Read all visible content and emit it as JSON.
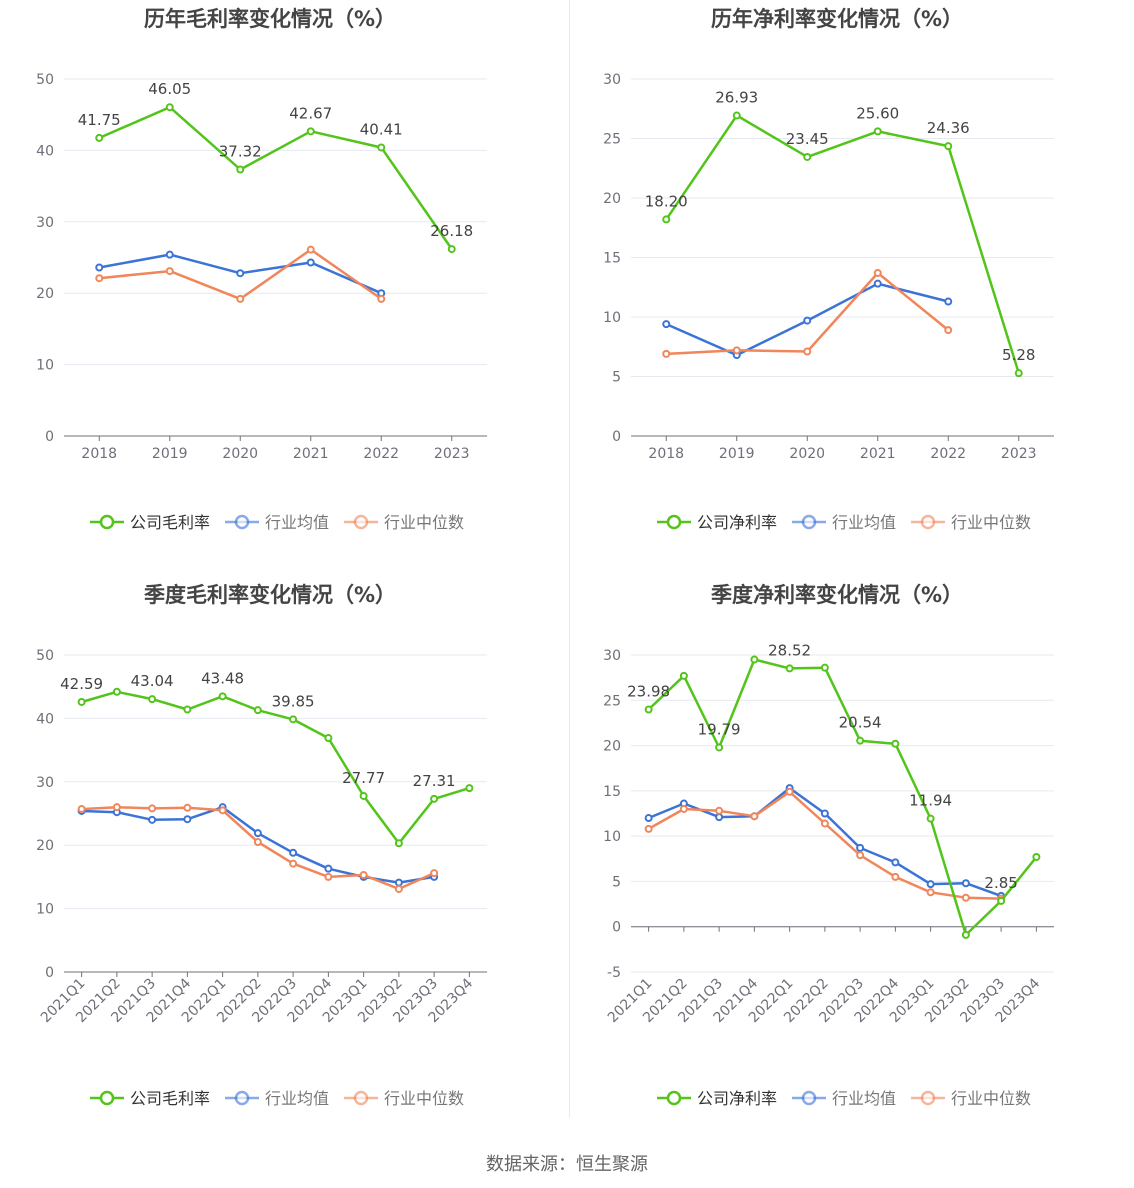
{
  "source_text": "数据来源：恒生聚源",
  "colors": {
    "company": "#52c41a",
    "avg": "#3b73d6",
    "median": "#f0865a",
    "grid": "#e6e9f0",
    "axis": "#6e7079",
    "title": "#444444"
  },
  "chart_data": [
    {
      "id": "annual-gross",
      "type": "line",
      "title": "历年毛利率变化情况（%）",
      "categories": [
        "2018",
        "2019",
        "2020",
        "2021",
        "2022",
        "2023"
      ],
      "ylim": [
        0,
        50
      ],
      "yticks": [
        0,
        10,
        20,
        30,
        40,
        50
      ],
      "rotate_x": false,
      "legend_position": "bottom",
      "series": [
        {
          "name": "公司毛利率",
          "key": "company",
          "values": [
            41.75,
            46.05,
            37.32,
            42.67,
            40.41,
            26.18
          ],
          "labels": [
            "41.75",
            "46.05",
            "37.32",
            "42.67",
            "40.41",
            "26.18"
          ]
        },
        {
          "name": "行业均值",
          "key": "avg",
          "values": [
            23.6,
            25.4,
            22.8,
            24.3,
            20.0,
            null
          ]
        },
        {
          "name": "行业中位数",
          "key": "median",
          "values": [
            22.1,
            23.1,
            19.2,
            26.1,
            19.2,
            null
          ]
        }
      ]
    },
    {
      "id": "annual-net",
      "type": "line",
      "title": "历年净利率变化情况（%）",
      "categories": [
        "2018",
        "2019",
        "2020",
        "2021",
        "2022",
        "2023"
      ],
      "ylim": [
        0,
        30
      ],
      "yticks": [
        0,
        5,
        10,
        15,
        20,
        25,
        30
      ],
      "rotate_x": false,
      "legend_position": "bottom",
      "series": [
        {
          "name": "公司净利率",
          "key": "company",
          "values": [
            18.2,
            26.93,
            23.45,
            25.6,
            24.36,
            5.28
          ],
          "labels": [
            "18.20",
            "26.93",
            "23.45",
            "25.60",
            "24.36",
            "5.28"
          ]
        },
        {
          "name": "行业均值",
          "key": "avg",
          "values": [
            9.4,
            6.8,
            9.7,
            12.8,
            11.3,
            null
          ]
        },
        {
          "name": "行业中位数",
          "key": "median",
          "values": [
            6.9,
            7.2,
            7.1,
            13.7,
            8.9,
            null
          ]
        }
      ]
    },
    {
      "id": "quarterly-gross",
      "type": "line",
      "title": "季度毛利率变化情况（%）",
      "categories": [
        "2021Q1",
        "2021Q2",
        "2021Q3",
        "2021Q4",
        "2022Q1",
        "2022Q2",
        "2022Q3",
        "2022Q4",
        "2023Q1",
        "2023Q2",
        "2023Q3",
        "2023Q4"
      ],
      "ylim": [
        0,
        50
      ],
      "yticks": [
        0,
        10,
        20,
        30,
        40,
        50
      ],
      "rotate_x": true,
      "legend_position": "bottom",
      "series": [
        {
          "name": "公司毛利率",
          "key": "company",
          "values": [
            42.59,
            44.2,
            43.04,
            41.4,
            43.48,
            41.3,
            39.85,
            36.9,
            27.77,
            20.3,
            27.31,
            29.0
          ],
          "labels": [
            "42.59",
            "",
            "43.04",
            "",
            "43.48",
            "",
            "39.85",
            "",
            "27.77",
            "",
            "27.31",
            ""
          ]
        },
        {
          "name": "行业均值",
          "key": "avg",
          "values": [
            25.4,
            25.2,
            24.0,
            24.1,
            26.0,
            21.9,
            18.8,
            16.3,
            15.0,
            14.1,
            15.0,
            null
          ]
        },
        {
          "name": "行业中位数",
          "key": "median",
          "values": [
            25.7,
            26.0,
            25.8,
            25.9,
            25.5,
            20.5,
            17.1,
            15.0,
            15.3,
            13.1,
            15.6,
            null
          ]
        }
      ]
    },
    {
      "id": "quarterly-net",
      "type": "line",
      "title": "季度净利率变化情况（%）",
      "categories": [
        "2021Q1",
        "2021Q2",
        "2021Q3",
        "2021Q4",
        "2022Q1",
        "2022Q2",
        "2022Q3",
        "2022Q4",
        "2023Q1",
        "2023Q2",
        "2023Q3",
        "2023Q4"
      ],
      "ylim": [
        -5,
        30
      ],
      "yticks": [
        -5,
        0,
        5,
        10,
        15,
        20,
        25,
        30
      ],
      "rotate_x": true,
      "legend_position": "bottom",
      "series": [
        {
          "name": "公司净利率",
          "key": "company",
          "values": [
            23.98,
            27.7,
            19.79,
            29.5,
            28.52,
            28.6,
            20.54,
            20.2,
            11.94,
            -0.9,
            2.85,
            7.7
          ],
          "labels": [
            "23.98",
            "",
            "19.79",
            "",
            "28.52",
            "",
            "20.54",
            "",
            "11.94",
            "",
            "2.85",
            ""
          ]
        },
        {
          "name": "行业均值",
          "key": "avg",
          "values": [
            12.0,
            13.6,
            12.1,
            12.2,
            15.3,
            12.5,
            8.7,
            7.1,
            4.7,
            4.8,
            3.4,
            null
          ]
        },
        {
          "name": "行业中位数",
          "key": "median",
          "values": [
            10.8,
            13.0,
            12.8,
            12.2,
            14.9,
            11.4,
            7.9,
            5.5,
            3.8,
            3.2,
            3.1,
            null
          ]
        }
      ]
    }
  ]
}
